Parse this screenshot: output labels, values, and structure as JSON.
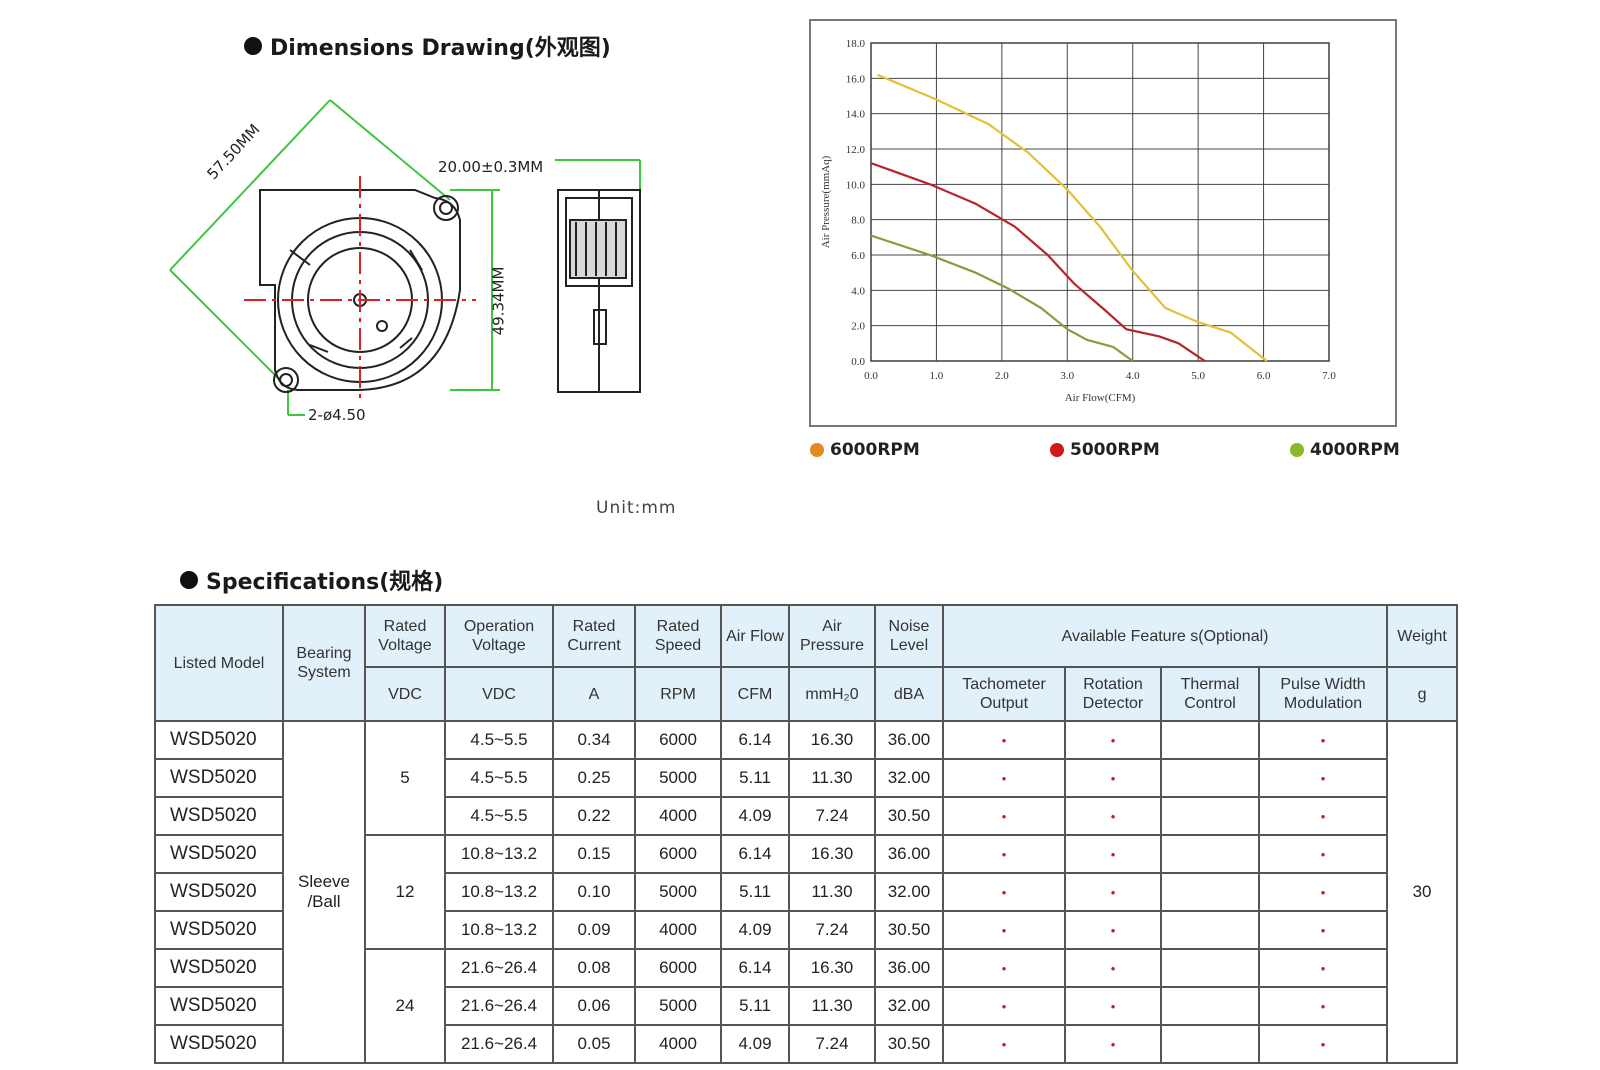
{
  "dimensions": {
    "title": "Dimensions Drawing(外观图)",
    "diag_label": "57.50MM",
    "width_label": "20.00±0.3MM",
    "height_label": "49.34MM",
    "hole_label": "2-ø4.50",
    "unit": "Unit:mm"
  },
  "chart_data": {
    "type": "line",
    "title": "",
    "xlabel": "Air Flow(CFM)",
    "ylabel": "Air Pressure(mmAq)",
    "xlim": [
      0,
      7
    ],
    "ylim": [
      0,
      18
    ],
    "x_ticks": [
      "0.0",
      "1.0",
      "2.0",
      "3.0",
      "4.0",
      "5.0",
      "6.0",
      "7.0"
    ],
    "y_ticks": [
      "0.0",
      "2.0",
      "4.0",
      "6.0",
      "8.0",
      "10.0",
      "12.0",
      "14.0",
      "16.0",
      "18.0"
    ],
    "grid": true,
    "legend_position": "bottom",
    "series": [
      {
        "name": "6000RPM",
        "color": "#e0c23a",
        "legend_color": "#e28a1e",
        "points": [
          [
            0.1,
            16.2
          ],
          [
            1.0,
            14.8
          ],
          [
            1.8,
            13.4
          ],
          [
            2.4,
            11.8
          ],
          [
            3.0,
            9.7
          ],
          [
            3.5,
            7.6
          ],
          [
            4.0,
            5.1
          ],
          [
            4.5,
            3.0
          ],
          [
            5.0,
            2.2
          ],
          [
            5.5,
            1.6
          ],
          [
            6.05,
            0.0
          ]
        ]
      },
      {
        "name": "5000RPM",
        "color": "#b8242a",
        "legend_color": "#d01818",
        "points": [
          [
            0.0,
            11.2
          ],
          [
            0.9,
            10.0
          ],
          [
            1.6,
            8.9
          ],
          [
            2.2,
            7.6
          ],
          [
            2.7,
            6.0
          ],
          [
            3.1,
            4.4
          ],
          [
            3.6,
            2.8
          ],
          [
            3.9,
            1.8
          ],
          [
            4.4,
            1.4
          ],
          [
            4.7,
            1.0
          ],
          [
            5.1,
            0.0
          ]
        ]
      },
      {
        "name": "4000RPM",
        "color": "#8a9a3e",
        "legend_color": "#8ab82a",
        "points": [
          [
            0.0,
            7.1
          ],
          [
            0.9,
            6.0
          ],
          [
            1.6,
            5.0
          ],
          [
            2.1,
            4.1
          ],
          [
            2.6,
            3.0
          ],
          [
            3.0,
            1.8
          ],
          [
            3.3,
            1.2
          ],
          [
            3.7,
            0.8
          ],
          [
            4.0,
            0.0
          ]
        ]
      }
    ]
  },
  "specs": {
    "title": "Specifications(规格)",
    "headers": {
      "listed_model": "Listed Model",
      "bearing_system": "Bearing System",
      "rated_voltage": "Rated Voltage",
      "operation_voltage": "Operation Voltage",
      "rated_current": "Rated Current",
      "rated_speed": "Rated Speed",
      "air_flow": "Air Flow",
      "air_pressure": "Air Pressure",
      "noise_level": "Noise Level",
      "available_features": "Available Feature s(Optional)",
      "weight": "Weight"
    },
    "units": {
      "rated_voltage": "VDC",
      "operation_voltage": "VDC",
      "rated_current": "A",
      "rated_speed": "RPM",
      "air_flow": "CFM",
      "air_pressure": "mmH₂0",
      "noise_level": "dBA",
      "weight": "g"
    },
    "features": [
      "Tachometer Output",
      "Rotation Detector",
      "Thermal Control",
      "Pulse Width Modulation"
    ],
    "bearing_value": "Sleeve /Ball",
    "weight_value": "30",
    "voltage_groups": [
      "5",
      "12",
      "24"
    ],
    "feature_mark": "•",
    "rows": [
      {
        "model": "WSD5020",
        "op_voltage": "4.5~5.5",
        "current": "0.34",
        "speed": "6000",
        "flow": "6.14",
        "pressure": "16.30",
        "noise": "36.00"
      },
      {
        "model": "WSD5020",
        "op_voltage": "4.5~5.5",
        "current": "0.25",
        "speed": "5000",
        "flow": "5.11",
        "pressure": "11.30",
        "noise": "32.00"
      },
      {
        "model": "WSD5020",
        "op_voltage": "4.5~5.5",
        "current": "0.22",
        "speed": "4000",
        "flow": "4.09",
        "pressure": "7.24",
        "noise": "30.50"
      },
      {
        "model": "WSD5020",
        "op_voltage": "10.8~13.2",
        "current": "0.15",
        "speed": "6000",
        "flow": "6.14",
        "pressure": "16.30",
        "noise": "36.00"
      },
      {
        "model": "WSD5020",
        "op_voltage": "10.8~13.2",
        "current": "0.10",
        "speed": "5000",
        "flow": "5.11",
        "pressure": "11.30",
        "noise": "32.00"
      },
      {
        "model": "WSD5020",
        "op_voltage": "10.8~13.2",
        "current": "0.09",
        "speed": "4000",
        "flow": "4.09",
        "pressure": "7.24",
        "noise": "30.50"
      },
      {
        "model": "WSD5020",
        "op_voltage": "21.6~26.4",
        "current": "0.08",
        "speed": "6000",
        "flow": "6.14",
        "pressure": "16.30",
        "noise": "36.00"
      },
      {
        "model": "WSD5020",
        "op_voltage": "21.6~26.4",
        "current": "0.06",
        "speed": "5000",
        "flow": "5.11",
        "pressure": "11.30",
        "noise": "32.00"
      },
      {
        "model": "WSD5020",
        "op_voltage": "21.6~26.4",
        "current": "0.05",
        "speed": "4000",
        "flow": "4.09",
        "pressure": "7.24",
        "noise": "30.50"
      }
    ]
  }
}
